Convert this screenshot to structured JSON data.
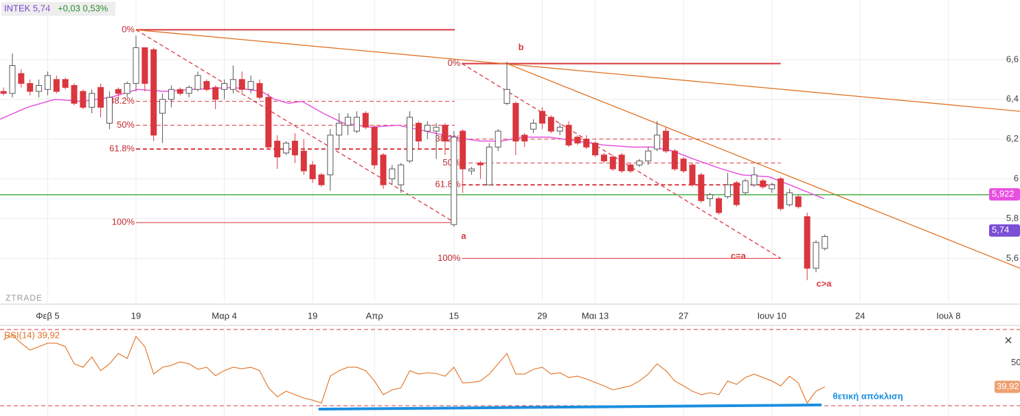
{
  "chart_data": {
    "type": "candlestick",
    "header": "INTEK 5,74",
    "change": "+0,03 0,53%",
    "watermark": "ZTRADE",
    "up_color": "#ffffff",
    "down_color": "#d9363e",
    "grid": true,
    "xlim": [
      -0.4,
      115.1
    ],
    "ylim": [
      5.38,
      6.9
    ],
    "xticks": [
      {
        "value": 5,
        "label": "Φεβ 5"
      },
      {
        "value": 15,
        "label": "19"
      },
      {
        "value": 25,
        "label": "Μαρ 4"
      },
      {
        "value": 35,
        "label": "19"
      },
      {
        "value": 42,
        "label": "Απρ"
      },
      {
        "value": 51,
        "label": "15"
      },
      {
        "value": 61,
        "label": "29"
      },
      {
        "value": 67,
        "label": "Μαι 13"
      },
      {
        "value": 77,
        "label": "27"
      },
      {
        "value": 87,
        "label": "Ιουν 10"
      },
      {
        "value": 97,
        "label": "24"
      },
      {
        "value": 107,
        "label": "Ιουλ 8"
      }
    ],
    "yticks": [
      {
        "value": 6.6,
        "label": "6,6"
      },
      {
        "value": 6.4,
        "label": "6,4"
      },
      {
        "value": 6.2,
        "label": "6,2"
      },
      6,
      {
        "value": 5.8,
        "label": "5,8"
      },
      {
        "value": 5.6,
        "label": "5,6"
      }
    ],
    "x": [
      0,
      1,
      2,
      3,
      4,
      5,
      6,
      7,
      8,
      9,
      10,
      11,
      12,
      13,
      14,
      15,
      16,
      17,
      18,
      19,
      20,
      21,
      22,
      23,
      24,
      25,
      26,
      27,
      28,
      29,
      30,
      31,
      32,
      33,
      34,
      35,
      36,
      37,
      38,
      39,
      40,
      41,
      42,
      43,
      44,
      45,
      46,
      47,
      48,
      49,
      50,
      51,
      52,
      53,
      54,
      55,
      56,
      57,
      58,
      59,
      60,
      61,
      62,
      63,
      64,
      65,
      66,
      67,
      68,
      69,
      70,
      71,
      72,
      73,
      74,
      75,
      76,
      77,
      78,
      79,
      80,
      81,
      82,
      83,
      84,
      85,
      86,
      87,
      88,
      89,
      90,
      91,
      92,
      93
    ],
    "ohlc": [
      [
        6.44,
        6.46,
        6.42,
        6.43
      ],
      [
        6.43,
        6.63,
        6.41,
        6.57
      ],
      [
        6.53,
        6.55,
        6.46,
        6.48
      ],
      [
        6.48,
        6.5,
        6.42,
        6.44
      ],
      [
        6.44,
        6.5,
        6.41,
        6.47
      ],
      [
        6.45,
        6.54,
        6.42,
        6.52
      ],
      [
        6.5,
        6.52,
        6.43,
        6.44
      ],
      [
        6.5,
        6.51,
        6.45,
        6.46
      ],
      [
        6.47,
        6.48,
        6.37,
        6.38
      ],
      [
        6.44,
        6.45,
        6.35,
        6.36
      ],
      [
        6.36,
        6.45,
        6.33,
        6.43
      ],
      [
        6.46,
        6.48,
        6.31,
        6.36
      ],
      [
        6.28,
        6.44,
        6.25,
        6.41
      ],
      [
        6.45,
        6.46,
        6.4,
        6.43
      ],
      [
        6.43,
        6.49,
        6.41,
        6.48
      ],
      [
        6.48,
        6.72,
        6.44,
        6.66
      ],
      [
        6.66,
        6.66,
        6.44,
        6.48
      ],
      [
        6.65,
        6.66,
        6.19,
        6.22
      ],
      [
        6.33,
        6.43,
        6.18,
        6.4
      ],
      [
        6.4,
        6.47,
        6.36,
        6.45
      ],
      [
        6.45,
        6.46,
        6.42,
        6.43
      ],
      [
        6.43,
        6.47,
        6.41,
        6.46
      ],
      [
        6.45,
        6.54,
        6.44,
        6.52
      ],
      [
        6.49,
        6.5,
        6.44,
        6.45
      ],
      [
        6.46,
        6.47,
        6.35,
        6.4
      ],
      [
        6.45,
        6.5,
        6.4,
        6.48
      ],
      [
        6.45,
        6.57,
        6.43,
        6.5
      ],
      [
        6.5,
        6.54,
        6.43,
        6.45
      ],
      [
        6.45,
        6.52,
        6.43,
        6.49
      ],
      [
        6.48,
        6.5,
        6.4,
        6.41
      ],
      [
        6.41,
        6.43,
        6.15,
        6.16
      ],
      [
        6.19,
        6.22,
        6.05,
        6.11
      ],
      [
        6.13,
        6.19,
        6.12,
        6.18
      ],
      [
        6.19,
        6.23,
        6.08,
        6.12
      ],
      [
        6.14,
        6.2,
        6.02,
        6.04
      ],
      [
        6.07,
        6.09,
        5.98,
        6.0
      ],
      [
        6.02,
        6.03,
        5.96,
        5.97
      ],
      [
        6.02,
        6.25,
        5.94,
        6.22
      ],
      [
        6.22,
        6.33,
        6.15,
        6.28
      ],
      [
        6.27,
        6.33,
        6.22,
        6.31
      ],
      [
        6.24,
        6.34,
        6.23,
        6.31
      ],
      [
        6.33,
        6.34,
        6.25,
        6.26
      ],
      [
        6.26,
        6.27,
        6.05,
        6.07
      ],
      [
        6.12,
        6.13,
        5.95,
        5.97
      ],
      [
        6.0,
        6.07,
        5.97,
        6.05
      ],
      [
        5.97,
        6.08,
        5.93,
        6.07
      ],
      [
        6.09,
        6.34,
        6.08,
        6.31
      ],
      [
        6.28,
        6.29,
        6.15,
        6.19
      ],
      [
        6.24,
        6.29,
        6.2,
        6.27
      ],
      [
        6.24,
        6.28,
        6.1,
        6.26
      ],
      [
        6.27,
        6.28,
        6.12,
        6.19
      ],
      [
        5.77,
        6.24,
        5.76,
        6.21
      ],
      [
        6.24,
        6.25,
        5.93,
        6.05
      ],
      [
        6.04,
        6.06,
        6.02,
        6.05
      ],
      [
        6.08,
        6.09,
        6.0,
        6.07
      ],
      [
        5.97,
        6.18,
        5.97,
        6.16
      ],
      [
        6.16,
        6.25,
        6.14,
        6.24
      ],
      [
        6.38,
        6.59,
        6.37,
        6.45
      ],
      [
        6.38,
        6.39,
        6.12,
        6.19
      ],
      [
        6.22,
        6.23,
        6.16,
        6.19
      ],
      [
        6.25,
        6.3,
        6.23,
        6.28
      ],
      [
        6.34,
        6.36,
        6.25,
        6.28
      ],
      [
        6.31,
        6.32,
        6.23,
        6.24
      ],
      [
        6.24,
        6.28,
        6.22,
        6.26
      ],
      [
        6.27,
        6.29,
        6.16,
        6.17
      ],
      [
        6.21,
        6.22,
        6.17,
        6.18
      ],
      [
        6.2,
        6.22,
        6.15,
        6.16
      ],
      [
        6.18,
        6.19,
        6.11,
        6.12
      ],
      [
        6.12,
        6.13,
        6.08,
        6.09
      ],
      [
        6.11,
        6.12,
        6.04,
        6.05
      ],
      [
        6.12,
        6.13,
        6.03,
        6.04
      ],
      [
        6.07,
        6.08,
        6.03,
        6.04
      ],
      [
        6.07,
        6.1,
        6.06,
        6.09
      ],
      [
        6.09,
        6.16,
        6.07,
        6.14
      ],
      [
        6.15,
        6.29,
        6.14,
        6.22
      ],
      [
        6.24,
        6.26,
        6.13,
        6.14
      ],
      [
        6.14,
        6.15,
        6.04,
        6.05
      ],
      [
        6.1,
        6.11,
        6.03,
        6.04
      ],
      [
        6.07,
        6.08,
        5.96,
        5.97
      ],
      [
        6.02,
        6.03,
        5.88,
        5.89
      ],
      [
        5.9,
        5.93,
        5.86,
        5.92
      ],
      [
        5.9,
        5.91,
        5.82,
        5.83
      ],
      [
        5.91,
        6.03,
        5.9,
        5.97
      ],
      [
        5.98,
        5.99,
        5.86,
        5.87
      ],
      [
        5.93,
        6.0,
        5.92,
        5.99
      ],
      [
        5.97,
        6.06,
        5.96,
        6.02
      ],
      [
        5.99,
        6.0,
        5.95,
        5.96
      ],
      [
        5.95,
        5.98,
        5.93,
        5.97
      ],
      [
        6.0,
        6.01,
        5.84,
        5.85
      ],
      [
        5.87,
        5.95,
        5.86,
        5.93
      ],
      [
        5.91,
        5.92,
        5.85,
        5.86
      ],
      [
        5.81,
        5.83,
        5.49,
        5.55
      ],
      [
        5.55,
        5.69,
        5.53,
        5.68
      ],
      [
        5.65,
        5.72,
        5.64,
        5.71
      ]
    ],
    "ma": {
      "color": "#e84fe0",
      "x": [
        -0.4,
        2.7,
        5.8,
        8.9,
        12.1,
        15.2,
        18.3,
        21.4,
        26.0,
        29.2,
        30.7,
        32.3,
        33.8,
        36.2,
        38.5,
        41.6,
        44.7,
        47.8,
        50.9,
        54.0,
        56.4,
        58.7,
        61.8,
        64.9,
        68.0,
        71.2,
        73.5,
        75.8,
        78.1,
        81.3,
        83.6,
        86.7,
        89.0,
        92.9
      ],
      "values": [
        6.3,
        6.36,
        6.4,
        6.39,
        6.41,
        6.45,
        6.44,
        6.45,
        6.46,
        6.44,
        6.4,
        6.38,
        6.39,
        6.33,
        6.28,
        6.26,
        6.27,
        6.24,
        6.21,
        6.19,
        6.19,
        6.21,
        6.21,
        6.19,
        6.17,
        6.16,
        6.16,
        6.14,
        6.1,
        6.05,
        6.02,
        6.01,
        5.97,
        5.9
      ]
    },
    "ma_tag": {
      "value": 5.922,
      "label": "5,922"
    },
    "price_tag": {
      "value": 5.74,
      "label": "5,74"
    },
    "lines": [
      {
        "color": "#e07020",
        "dash": false,
        "from": [
          15,
          6.75
        ],
        "to": [
          115.1,
          6.34
        ]
      },
      {
        "color": "#e07020",
        "dash": false,
        "from": [
          57,
          6.58
        ],
        "to": [
          115.1,
          5.55
        ]
      },
      {
        "color": "#d9363e",
        "dash": true,
        "from": [
          15,
          6.75
        ],
        "to": [
          51.1,
          5.78
        ]
      },
      {
        "color": "#d9363e",
        "dash": true,
        "from": [
          51.9,
          6.58
        ],
        "to": [
          88,
          5.6
        ]
      },
      {
        "color": "#3aaa35",
        "dash": false,
        "from": [
          -0.4,
          5.92
        ],
        "to": [
          115.1,
          5.92
        ]
      }
    ],
    "fib": [
      {
        "x": [
          15,
          51.1
        ],
        "levels": [
          {
            "value": 6.75,
            "label": "0%"
          },
          {
            "value": 6.39,
            "label": "38.2%"
          },
          {
            "value": 6.27,
            "label": "50%"
          },
          {
            "value": 6.15,
            "label": "61.8%"
          },
          {
            "value": 5.78,
            "label": "100%"
          }
        ]
      },
      {
        "x": [
          51.9,
          88
        ],
        "levels": [
          {
            "value": 6.58,
            "label": "0%"
          },
          {
            "value": 6.2,
            "label": "38.2%"
          },
          {
            "value": 6.08,
            "label": "50%"
          },
          {
            "value": 5.97,
            "label": "61.8%"
          },
          {
            "value": 5.6,
            "label": "100%"
          }
        ]
      }
    ],
    "wave_labels": [
      {
        "label": "b",
        "x": 58.6,
        "y": 6.66
      },
      {
        "label": "a",
        "x": 52.1,
        "y": 5.71
      },
      {
        "label": "c=a",
        "x": 83.2,
        "y": 5.61
      },
      {
        "label": "c>a",
        "x": 92.9,
        "y": 5.47
      }
    ],
    "rsi": {
      "title": "RSI(14) 39,92",
      "color": "#e07020",
      "ylim": [
        24.6,
        71.8
      ],
      "yticks": [
        50
      ],
      "levels": [
        30,
        70
      ],
      "tag": {
        "value": 39.92,
        "label": "39,92"
      },
      "values": [
        64.6,
        67.1,
        62.8,
        59.2,
        61.0,
        62.8,
        62.8,
        61.0,
        52.0,
        50.2,
        55.6,
        48.4,
        52.0,
        57.4,
        54.8,
        66.4,
        61.0,
        46.6,
        50.2,
        51.2,
        53.0,
        52.0,
        49.1,
        50.2,
        45.8,
        48.4,
        50.2,
        49.4,
        50.2,
        48.4,
        39.4,
        34.7,
        37.6,
        35.8,
        34.0,
        32.9,
        31.4,
        45.5,
        48.4,
        50.2,
        50.2,
        48.4,
        43.0,
        35.8,
        38.3,
        39.4,
        48.4,
        46.6,
        47.3,
        46.9,
        45.5,
        50.2,
        41.9,
        42.2,
        43.0,
        46.6,
        52.0,
        57.4,
        46.6,
        46.6,
        49.1,
        50.2,
        46.6,
        47.3,
        44.8,
        45.5,
        44.0,
        42.2,
        40.4,
        38.3,
        39.4,
        40.4,
        43.0,
        46.6,
        52.0,
        48.4,
        43.0,
        40.4,
        37.6,
        35.8,
        36.8,
        35.8,
        43.0,
        41.2,
        44.8,
        46.6,
        44.8,
        43.0,
        40.4,
        45.5,
        41.9,
        31.4,
        37.6,
        39.92
      ],
      "divergence": {
        "label": "θετική απόκλιση",
        "color": "#1a8fe0",
        "from": [
          35.8,
          28.2
        ],
        "to": [
          92.5,
          30.4
        ]
      }
    }
  }
}
